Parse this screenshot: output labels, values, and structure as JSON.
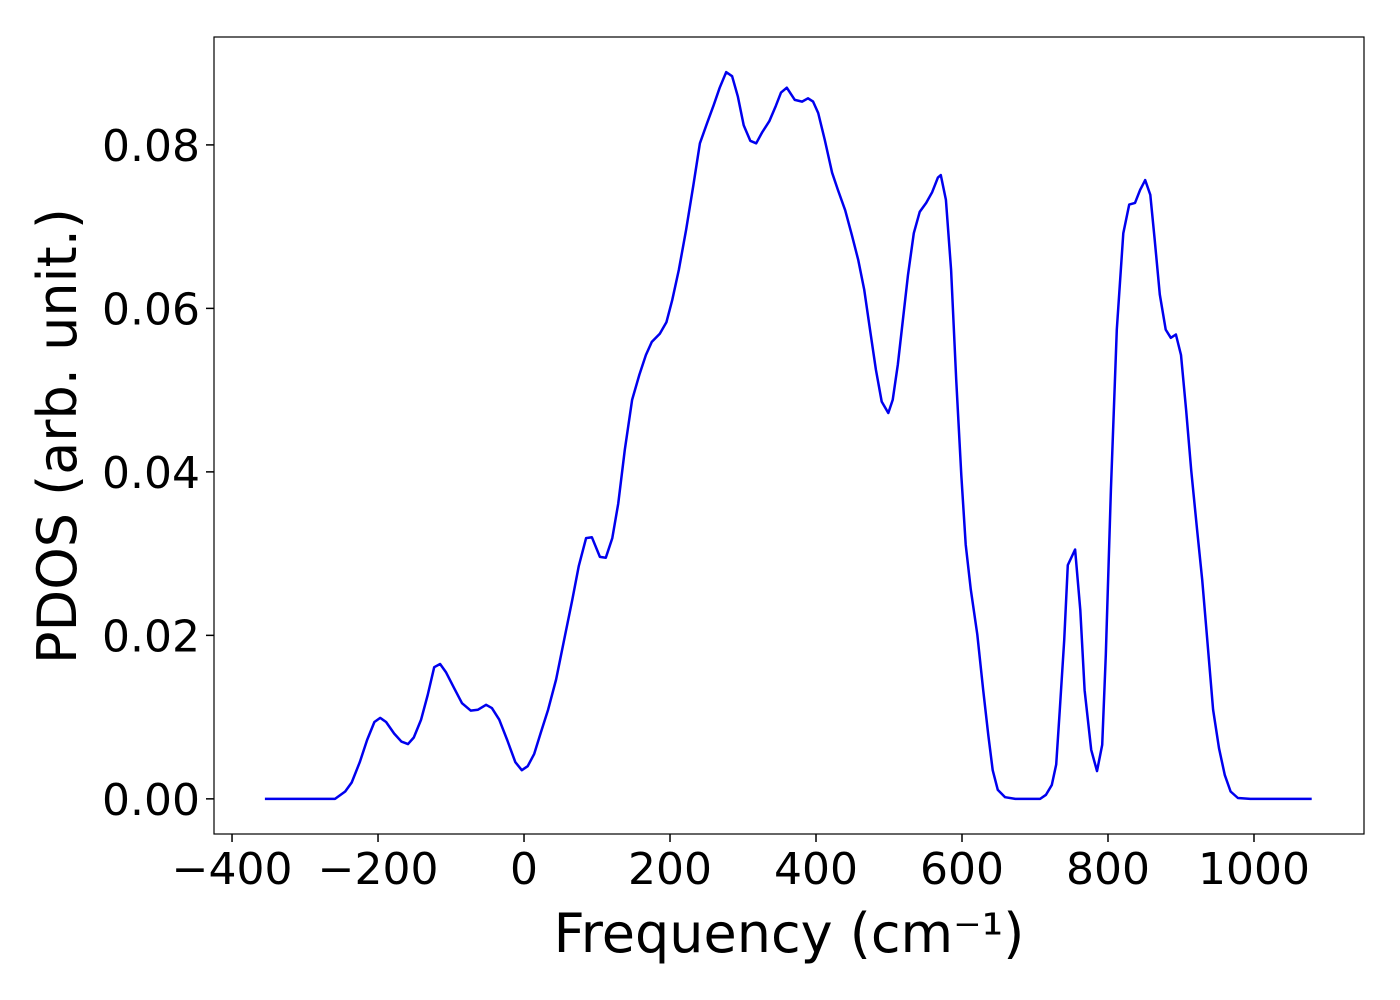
{
  "chart_data": {
    "type": "line",
    "xlabel": "Frequency (cm⁻¹)",
    "ylabel": "PDOS (arb. unit.)",
    "color": "#0000ee",
    "xlim": [
      -424.7,
      1150.7
    ],
    "ylim": [
      -0.0043,
      0.0932
    ],
    "xticks": [
      {
        "value": -400,
        "label": "−400"
      },
      {
        "value": -200,
        "label": "−200"
      },
      0,
      200,
      400,
      600,
      800,
      1000
    ],
    "yticks": [
      {
        "value": 0,
        "label": "0.00"
      },
      {
        "value": 0.02,
        "label": "0.02"
      },
      {
        "value": 0.04,
        "label": "0.04"
      },
      {
        "value": 0.06,
        "label": "0.06"
      },
      {
        "value": 0.08,
        "label": "0.08"
      }
    ],
    "x": [
      -355,
      -259,
      -245,
      -236,
      -225,
      -215,
      -205,
      -197,
      -189,
      -178,
      -168,
      -159,
      -151,
      -141,
      -132,
      -123,
      -115,
      -107,
      -96,
      -85,
      -73,
      -63,
      -52,
      -44,
      -34,
      -23,
      -12,
      -3,
      5,
      14,
      23,
      33,
      44,
      55,
      66,
      75,
      85,
      93,
      104,
      112,
      121,
      129,
      138,
      148,
      158,
      167,
      175,
      186,
      195,
      203,
      212,
      222,
      232,
      241,
      251,
      260,
      268,
      277,
      285,
      293,
      301,
      310,
      318,
      326,
      336,
      345,
      352,
      360,
      371,
      381,
      389,
      396,
      403,
      412,
      422,
      430,
      440,
      449,
      458,
      466,
      474,
      482,
      490,
      499,
      505,
      512,
      519,
      526,
      534,
      542,
      551,
      559,
      567,
      571,
      578,
      585,
      592,
      599,
      605,
      612,
      621,
      629,
      636,
      642,
      649,
      659,
      673,
      707,
      715,
      723,
      729,
      734,
      740,
      745,
      755,
      762,
      768,
      777,
      785,
      792,
      797,
      804,
      812,
      821,
      829,
      837,
      844,
      851,
      858,
      864,
      871,
      879,
      886,
      893,
      900,
      907,
      914,
      922,
      929,
      936,
      944,
      952,
      960,
      968,
      978,
      995,
      1079
    ],
    "values": [
      0,
      0,
      0.0009,
      0.002,
      0.0045,
      0.0072,
      0.0094,
      0.0099,
      0.0094,
      0.008,
      0.007,
      0.0067,
      0.0075,
      0.0097,
      0.0127,
      0.0161,
      0.0165,
      0.0155,
      0.0136,
      0.0117,
      0.0108,
      0.0109,
      0.0115,
      0.0111,
      0.0097,
      0.0072,
      0.0045,
      0.0035,
      0.004,
      0.0055,
      0.0081,
      0.0109,
      0.0146,
      0.0195,
      0.0243,
      0.0285,
      0.0319,
      0.032,
      0.0296,
      0.0295,
      0.0319,
      0.0361,
      0.0427,
      0.0488,
      0.0519,
      0.0543,
      0.0559,
      0.0569,
      0.0583,
      0.061,
      0.0647,
      0.0696,
      0.0751,
      0.0802,
      0.0827,
      0.0849,
      0.087,
      0.0889,
      0.0884,
      0.0859,
      0.0824,
      0.0805,
      0.0802,
      0.0815,
      0.0829,
      0.0848,
      0.0864,
      0.087,
      0.0855,
      0.0853,
      0.0857,
      0.0853,
      0.0839,
      0.0806,
      0.0766,
      0.0745,
      0.072,
      0.069,
      0.0659,
      0.0623,
      0.0574,
      0.0525,
      0.0486,
      0.0472,
      0.0488,
      0.0531,
      0.0586,
      0.0641,
      0.0692,
      0.0718,
      0.0729,
      0.0742,
      0.076,
      0.0763,
      0.0733,
      0.0647,
      0.0513,
      0.0396,
      0.0311,
      0.0256,
      0.0201,
      0.0133,
      0.0078,
      0.0035,
      0.0011,
      0.0002,
      0,
      0,
      0.0005,
      0.0017,
      0.0042,
      0.0109,
      0.0194,
      0.0286,
      0.0305,
      0.0231,
      0.0133,
      0.006,
      0.0034,
      0.0066,
      0.0176,
      0.0378,
      0.0574,
      0.0692,
      0.0727,
      0.0729,
      0.0745,
      0.0757,
      0.0739,
      0.0684,
      0.0617,
      0.0574,
      0.0564,
      0.0568,
      0.0543,
      0.0476,
      0.0402,
      0.0329,
      0.0268,
      0.0194,
      0.0109,
      0.0062,
      0.0029,
      0.0009,
      0.0001,
      0,
      0
    ]
  }
}
